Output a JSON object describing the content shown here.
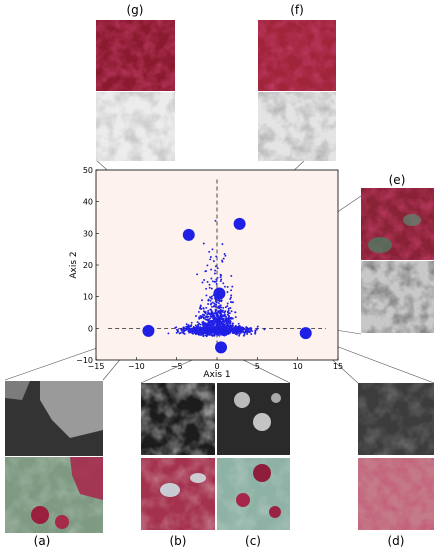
{
  "chart_data": {
    "type": "scatter",
    "xlabel": "Axis 1",
    "ylabel": "Axis 2",
    "xlim": [
      -15,
      15
    ],
    "ylim": [
      -10,
      50
    ],
    "xticks": [
      -15,
      -10,
      -5,
      0,
      5,
      10,
      15
    ],
    "yticks": [
      -10,
      0,
      10,
      20,
      30,
      40,
      50
    ],
    "x_tick_labels": [
      "−15",
      "−10",
      "−5",
      "0",
      "5",
      "10",
      "15"
    ],
    "y_tick_labels": [
      "−10",
      "0",
      "10",
      "20",
      "30",
      "40",
      "50"
    ],
    "grid": false,
    "background": "#fdf2ee",
    "point_color": "#1f1fe6",
    "reference_lines": {
      "x": 0,
      "y": 0,
      "style": "dashed"
    },
    "highlighted_points": [
      {
        "label": "(a)",
        "x": -8.5,
        "y": -0.8
      },
      {
        "label": "(b)",
        "x": 0.5,
        "y": -6.0
      },
      {
        "label": "(d)",
        "x": 11.0,
        "y": -1.5
      },
      {
        "label": "(e)",
        "x": 0.3,
        "y": 11.0
      },
      {
        "label": "(f)",
        "x": 2.8,
        "y": 33.0
      },
      {
        "label": "(g)",
        "x": -3.5,
        "y": 29.5
      }
    ],
    "panel_labels": [
      "(a)",
      "(b)",
      "(c)",
      "(d)",
      "(e)",
      "(f)",
      "(g)"
    ]
  }
}
